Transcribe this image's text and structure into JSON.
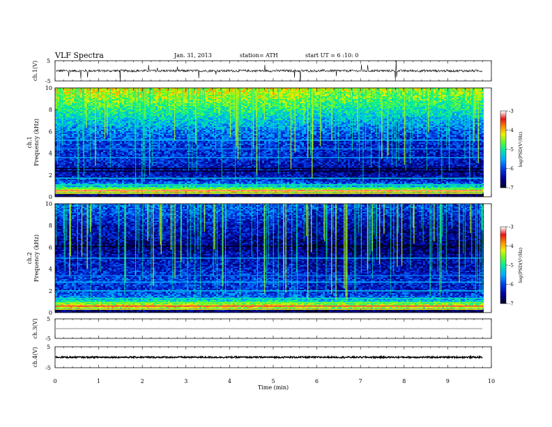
{
  "header": {
    "title": "VLF  Spectra",
    "date": "Jan. 31, 2013",
    "station": "station= ATH",
    "start": "start  UT =   6  :10: 0"
  },
  "chart_data": [
    {
      "type": "line",
      "panel": "ch1-waveform",
      "ylabel": "ch.1(V)",
      "ylim": [
        -5,
        5
      ],
      "yticks": [
        "5",
        "-5"
      ],
      "baseline": 0,
      "noise_amplitude": 0.6,
      "spikes": "frequent impulsive spikes, mostly downward"
    },
    {
      "type": "heatmap",
      "panel": "ch1-spectrogram",
      "ylabel": "ch.1\nFrequency  (kHz)",
      "ylim": [
        0,
        10
      ],
      "yticks": [
        "0",
        "2",
        "4",
        "6",
        "8",
        "10"
      ],
      "xlim": [
        0,
        10
      ],
      "data_end_min": 9.8,
      "colorbar": {
        "label": "log(PSD(V²/Hz)",
        "range": [
          -7,
          -3
        ],
        "ticks": [
          "-3",
          "-4",
          "-5",
          "-6",
          "-7"
        ]
      },
      "level_profile": [
        {
          "f": 0.2,
          "v": -6.6
        },
        {
          "f": 0.5,
          "v": -3.6
        },
        {
          "f": 0.9,
          "v": -5.2
        },
        {
          "f": 1.5,
          "v": -6.1
        },
        {
          "f": 2.2,
          "v": -6.4
        },
        {
          "f": 3.0,
          "v": -6.2
        },
        {
          "f": 4.0,
          "v": -6.1
        },
        {
          "f": 5.0,
          "v": -6.0
        },
        {
          "f": 6.0,
          "v": -5.7
        },
        {
          "f": 7.0,
          "v": -5.3
        },
        {
          "f": 8.0,
          "v": -4.9
        },
        {
          "f": 9.0,
          "v": -4.5
        },
        {
          "f": 10.0,
          "v": -4.2
        }
      ],
      "lines": [
        {
          "f": 0.3,
          "v": -4.1
        },
        {
          "f": 0.55,
          "v": -3.2
        },
        {
          "f": 0.75,
          "v": -4.6
        },
        {
          "f": 1.1,
          "v": -5.0
        },
        {
          "f": 1.7,
          "v": -5.3
        },
        {
          "f": 2.35,
          "v": -7.0
        },
        {
          "f": 2.6,
          "v": -7.0
        },
        {
          "f": 3.6,
          "v": -5.6
        },
        {
          "f": 4.4,
          "v": -5.7
        },
        {
          "f": 5.2,
          "v": -5.5
        }
      ]
    },
    {
      "type": "heatmap",
      "panel": "ch2-spectrogram",
      "ylabel": "ch.2\nFrequency  (kHz)",
      "ylim": [
        0,
        10
      ],
      "yticks": [
        "0",
        "2",
        "4",
        "6",
        "8",
        "10"
      ],
      "xlim": [
        0,
        10
      ],
      "data_end_min": 9.8,
      "colorbar": {
        "label": "log(PSD(V²/Hz)",
        "range": [
          -7,
          -3
        ],
        "ticks": [
          "-3",
          "-4",
          "-5",
          "-6",
          "-7"
        ]
      },
      "level_profile": [
        {
          "f": 0.2,
          "v": -6.6
        },
        {
          "f": 0.5,
          "v": -3.8
        },
        {
          "f": 1.0,
          "v": -5.0
        },
        {
          "f": 1.5,
          "v": -5.8
        },
        {
          "f": 2.2,
          "v": -6.1
        },
        {
          "f": 3.0,
          "v": -6.0
        },
        {
          "f": 4.0,
          "v": -6.2
        },
        {
          "f": 5.0,
          "v": -6.3
        },
        {
          "f": 6.0,
          "v": -6.6
        },
        {
          "f": 7.0,
          "v": -6.4
        },
        {
          "f": 8.0,
          "v": -6.3
        },
        {
          "f": 9.0,
          "v": -6.0
        },
        {
          "f": 10.0,
          "v": -5.8
        }
      ],
      "lines": [
        {
          "f": 0.3,
          "v": -4.2
        },
        {
          "f": 0.6,
          "v": -3.3
        },
        {
          "f": 0.9,
          "v": -4.5
        },
        {
          "f": 1.3,
          "v": -5.1
        },
        {
          "f": 2.0,
          "v": -5.4
        },
        {
          "f": 2.8,
          "v": -5.5
        },
        {
          "f": 3.4,
          "v": -5.8
        },
        {
          "f": 5.0,
          "v": -5.6
        },
        {
          "f": 6.1,
          "v": -7.0
        }
      ]
    },
    {
      "type": "line",
      "panel": "ch3-waveform",
      "ylabel": "ch.3(V)",
      "ylim": [
        -5,
        5
      ],
      "yticks": [
        "5",
        "-5"
      ],
      "baseline": 0,
      "noise_amplitude": 0.05
    },
    {
      "type": "line",
      "panel": "ch4-waveform",
      "ylabel": "ch.4(V)",
      "ylim": [
        -5,
        5
      ],
      "yticks": [
        "5",
        "-5"
      ],
      "baseline": 0,
      "noise_amplitude": 0.35
    }
  ],
  "xaxis": {
    "label": "Time  (min)",
    "ticks": [
      "0",
      "1",
      "2",
      "3",
      "4",
      "5",
      "6",
      "7",
      "8",
      "9",
      "10"
    ],
    "xlim": [
      0,
      10
    ]
  }
}
